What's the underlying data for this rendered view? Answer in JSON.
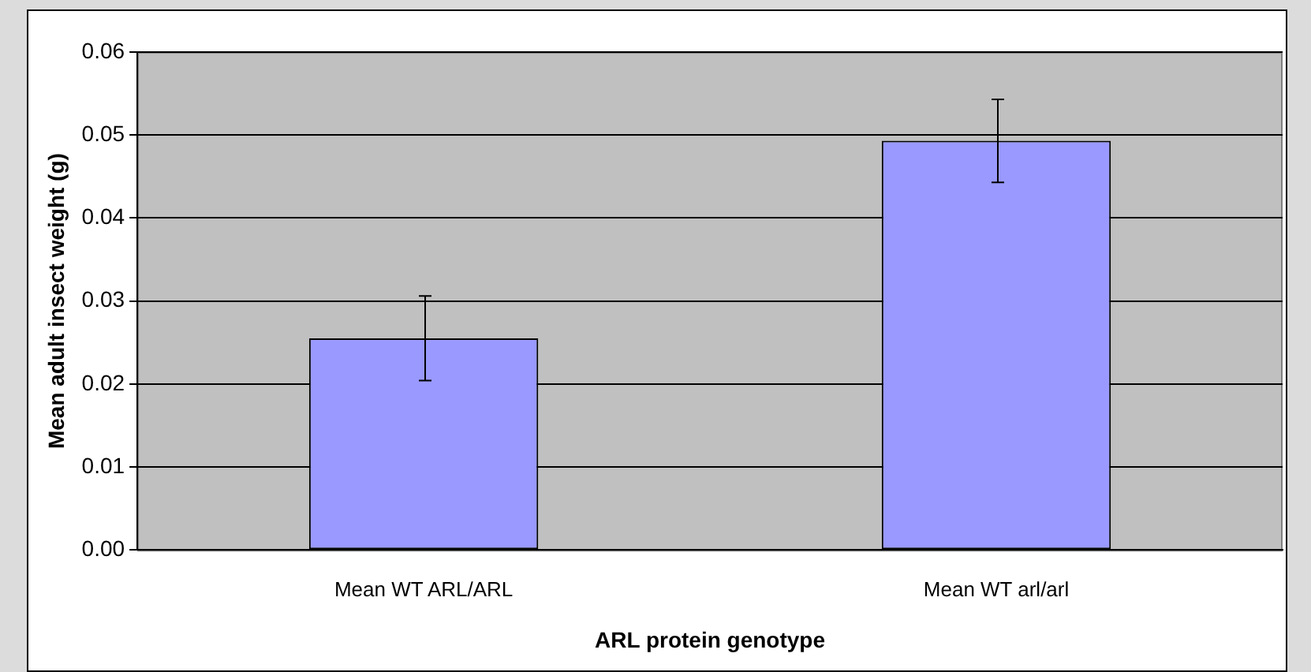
{
  "chart_data": {
    "type": "bar",
    "xlabel": "ARL protein genotype",
    "ylabel": "Mean adult insect weight (g)",
    "categories": [
      "Mean WT ARL/ARL",
      "Mean WT arl/arl"
    ],
    "values": [
      0.0255,
      0.0493
    ],
    "errors": [
      0.0051,
      0.005
    ],
    "color": "#9999ff",
    "ylim": [
      0,
      0.06
    ],
    "yticks": [
      {
        "value": 0,
        "label": "0.00"
      },
      {
        "value": 0.01,
        "label": "0.01"
      },
      {
        "value": 0.02,
        "label": "0.02"
      },
      {
        "value": 0.03,
        "label": "0.03"
      },
      {
        "value": 0.04,
        "label": "0.04"
      },
      {
        "value": 0.05,
        "label": "0.05"
      },
      {
        "value": 0.06,
        "label": "0.06"
      }
    ],
    "grid": "y",
    "legend": false
  }
}
